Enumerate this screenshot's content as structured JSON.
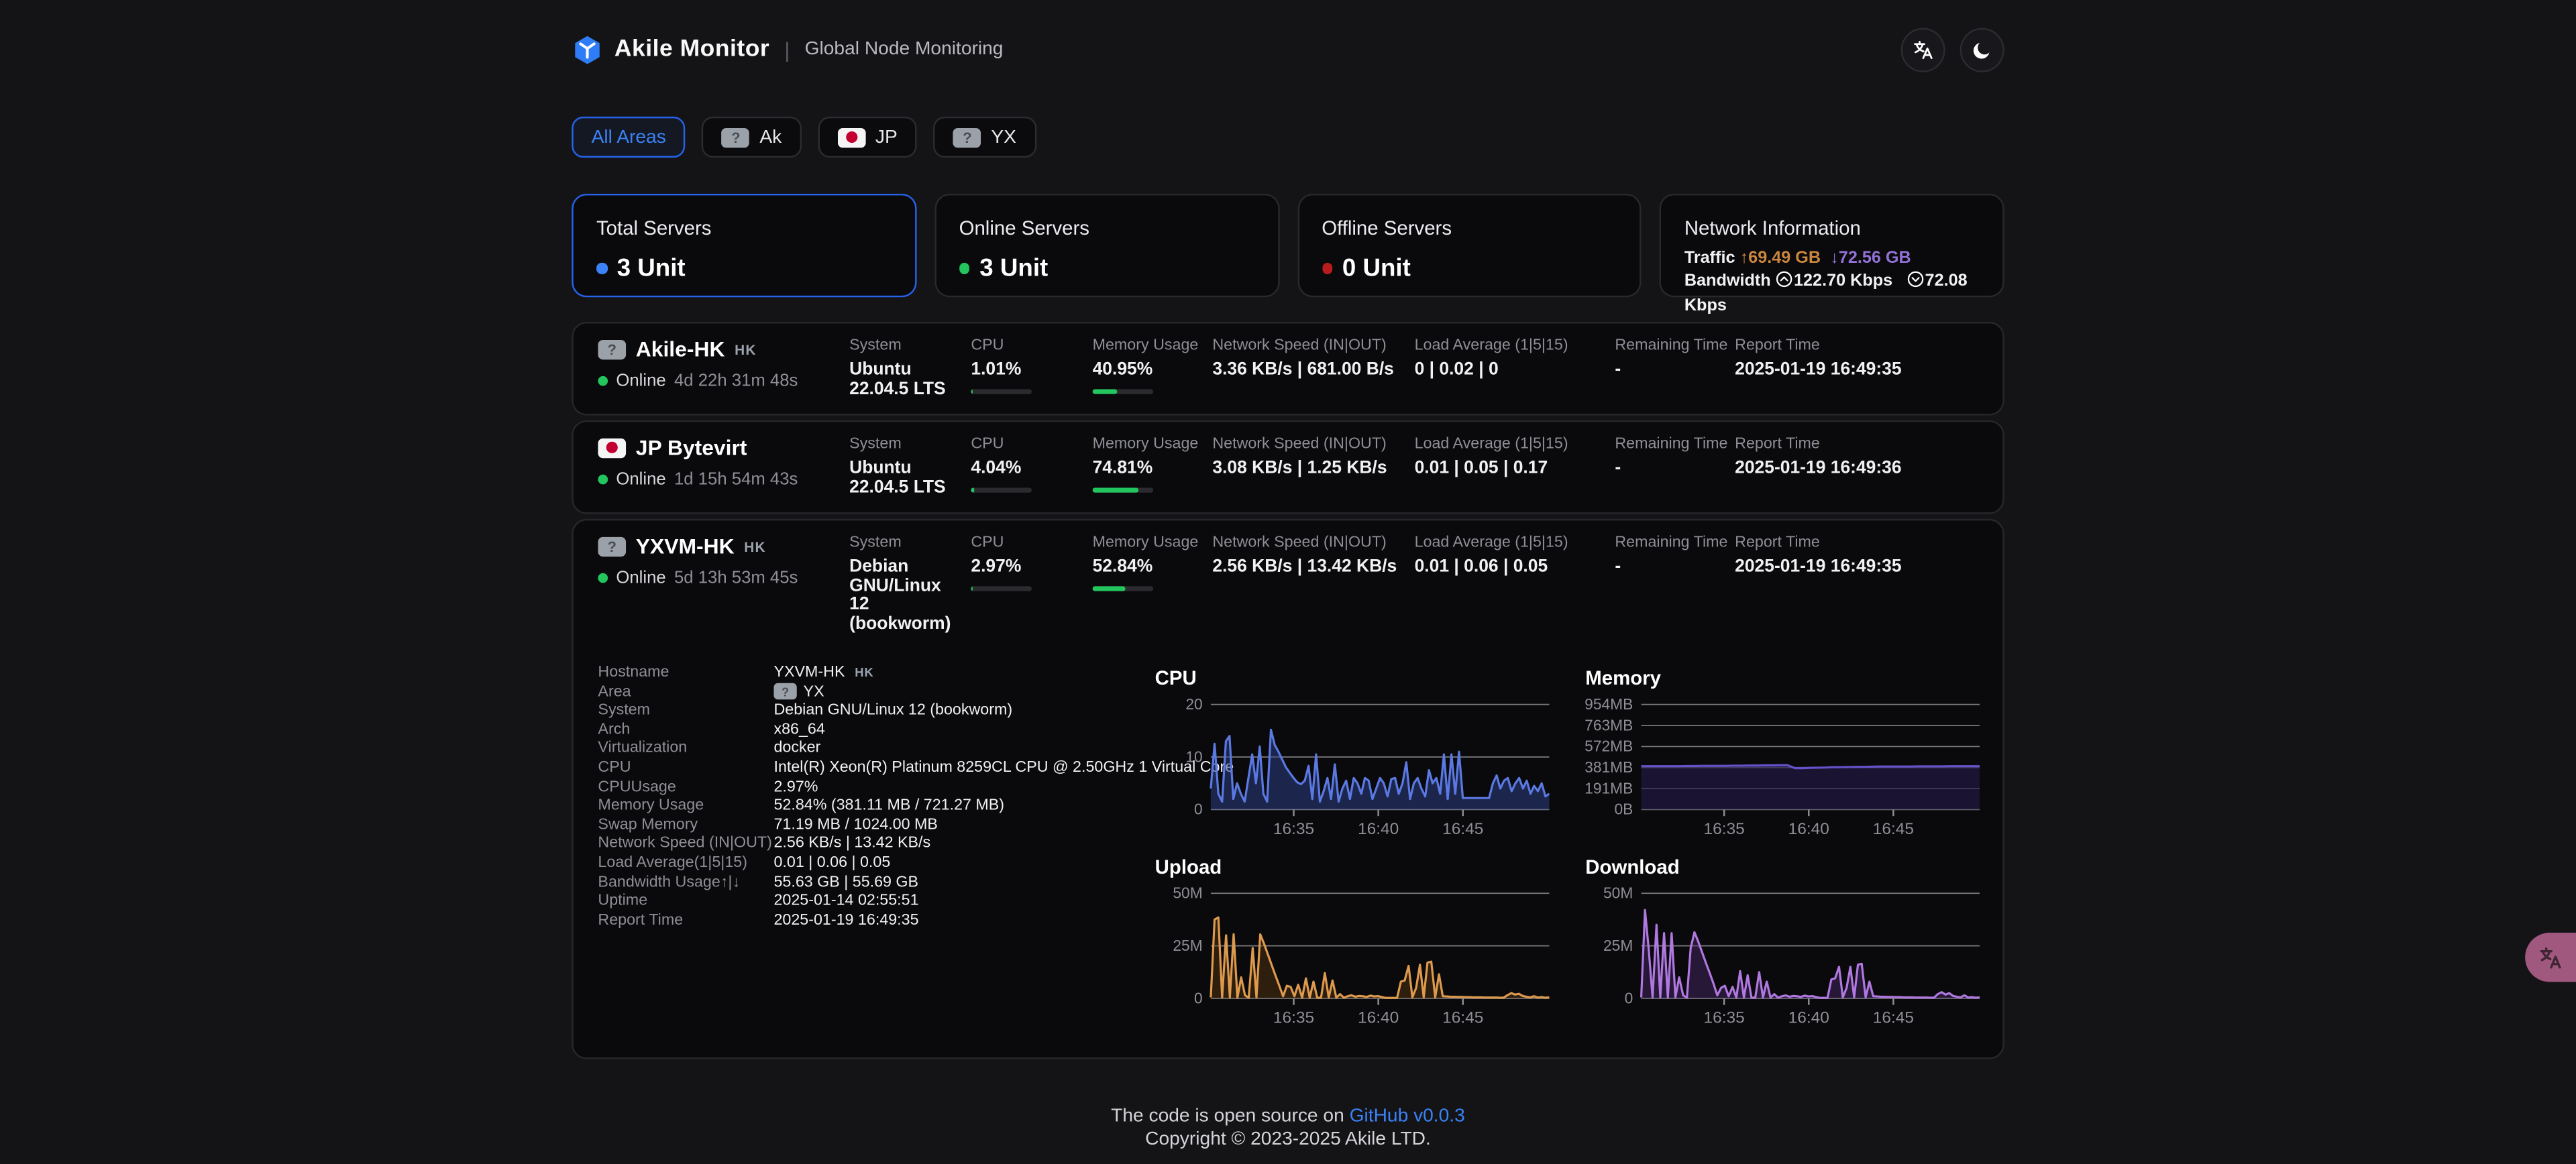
{
  "header": {
    "brand": "Akile Monitor",
    "separator": "|",
    "subtitle": "Global Node Monitoring",
    "icons": [
      "translate-icon",
      "moon-icon"
    ]
  },
  "area_tabs": [
    {
      "label": "All Areas",
      "flag": null,
      "active": true
    },
    {
      "label": "Ak",
      "flag": "unknown",
      "active": false
    },
    {
      "label": "JP",
      "flag": "jp",
      "active": false
    },
    {
      "label": "YX",
      "flag": "unknown",
      "active": false
    }
  ],
  "stats": [
    {
      "title": "Total Servers",
      "value": "3 Unit",
      "dot_color": "#3b82f6",
      "selected": true
    },
    {
      "title": "Online Servers",
      "value": "3 Unit",
      "dot_color": "#22c55e",
      "selected": false
    },
    {
      "title": "Offline Servers",
      "value": "0 Unit",
      "dot_color": "#b91c1c",
      "selected": false
    }
  ],
  "network_card": {
    "title": "Network Information",
    "traffic_label": "Traffic",
    "traffic_up": "↑69.49 GB",
    "traffic_down": "↓72.56 GB",
    "bandwidth_label": "Bandwidth",
    "bandwidth_up": "122.70 Kbps",
    "bandwidth_down": "72.08 Kbps"
  },
  "row_labels": {
    "system": "System",
    "cpu": "CPU",
    "memory": "Memory Usage",
    "network": "Network Speed (IN|OUT)",
    "load": "Load Average (1|5|15)",
    "remaining": "Remaining Time",
    "report": "Report Time"
  },
  "servers": [
    {
      "name": "Akile-HK",
      "region": "HK",
      "flag": "unknown",
      "status": "Online",
      "uptime": "4d 22h 31m 48s",
      "system": "Ubuntu 22.04.5 LTS",
      "cpu": "1.01%",
      "cpu_pct": 2.5,
      "memory": "40.95%",
      "memory_pct": 40.95,
      "network": "3.36 KB/s | 681.00 B/s",
      "load": "0 | 0.02 | 0",
      "remaining": "-",
      "report": "2025-01-19 16:49:35"
    },
    {
      "name": "JP Bytevirt",
      "region": "",
      "flag": "jp",
      "status": "Online",
      "uptime": "1d 15h 54m 43s",
      "system": "Ubuntu 22.04.5 LTS",
      "cpu": "4.04%",
      "cpu_pct": 5,
      "memory": "74.81%",
      "memory_pct": 74.81,
      "network": "3.08 KB/s | 1.25 KB/s",
      "load": "0.01 | 0.05 | 0.17",
      "remaining": "-",
      "report": "2025-01-19 16:49:36"
    },
    {
      "name": "YXVM-HK",
      "region": "HK",
      "flag": "unknown",
      "status": "Online",
      "uptime": "5d 13h 53m 45s",
      "system": "Debian GNU/Linux 12 (bookworm)",
      "cpu": "2.97%",
      "cpu_pct": 4,
      "memory": "52.84%",
      "memory_pct": 52.84,
      "network": "2.56 KB/s | 13.42 KB/s",
      "load": "0.01 | 0.06 | 0.05",
      "remaining": "-",
      "report": "2025-01-19 16:49:35"
    }
  ],
  "details": {
    "rows": [
      {
        "label": "Hostname",
        "value": "YXVM-HK",
        "suffix": "HK"
      },
      {
        "label": "Area",
        "value": "YX",
        "flag": "unknown"
      },
      {
        "label": "System",
        "value": "Debian GNU/Linux 12 (bookworm)"
      },
      {
        "label": "Arch",
        "value": "x86_64"
      },
      {
        "label": "Virtualization",
        "value": "docker"
      },
      {
        "label": "CPU",
        "value": "Intel(R) Xeon(R) Platinum 8259CL CPU @ 2.50GHz 1 Virtual Core"
      },
      {
        "label": "CPUUsage",
        "value": "2.97%"
      },
      {
        "label": "Memory Usage",
        "value": "52.84% (381.11 MB / 721.27 MB)"
      },
      {
        "label": "Swap Memory",
        "value": "71.19 MB / 1024.00 MB"
      },
      {
        "label": "Network Speed  (IN|OUT)",
        "value": "2.56 KB/s | 13.42 KB/s"
      },
      {
        "label": "Load Average(1|5|15)",
        "value": "0.01 | 0.06 | 0.05"
      },
      {
        "label": "Bandwidth Usage↑|↓",
        "value": "55.63 GB | 55.69 GB"
      },
      {
        "label": "Uptime",
        "value": "2025-01-14 02:55:51"
      },
      {
        "label": "Report Time",
        "value": "2025-01-19 16:49:35"
      }
    ]
  },
  "chart_data": [
    {
      "type": "area",
      "title": "CPU",
      "ylabel": "CPU %",
      "y_max": 20,
      "grid": true,
      "legend": "none",
      "color": "#5b79e3",
      "fill": "rgba(45,65,140,0.5)",
      "y_ticks": [
        {
          "label": "20",
          "v": 20
        },
        {
          "label": "10",
          "v": 10
        },
        {
          "label": "0",
          "v": 0
        }
      ],
      "x_ticks": [
        {
          "label": "16:35",
          "pos": 0.245
        },
        {
          "label": "16:40",
          "pos": 0.495
        },
        {
          "label": "16:45",
          "pos": 0.745
        }
      ],
      "values": [
        4,
        12.5,
        3,
        1.5,
        13,
        14,
        2,
        5,
        3,
        1.5,
        6,
        10.5,
        5,
        12,
        3,
        1.5,
        15.2,
        12.3,
        11,
        9.5,
        8,
        7,
        6,
        5.2,
        4.8,
        5.5,
        8.3,
        2,
        10.5,
        1.5,
        3.5,
        6,
        2,
        8.6,
        1.5,
        4,
        5.5,
        2,
        6,
        5,
        3,
        6,
        5.5,
        2,
        4,
        6,
        5,
        2.5,
        5.8,
        6,
        3,
        5,
        9,
        2,
        5,
        6,
        4,
        2.5,
        7.5,
        5,
        6,
        3,
        10.5,
        2,
        10.5,
        3,
        11,
        2.2,
        2.2,
        2.2,
        2.2,
        2.2,
        2.2,
        2.2,
        2.2,
        5,
        6.5,
        4,
        5.5,
        6,
        3.5,
        5,
        6,
        4,
        5.5,
        3,
        4.5,
        3.5,
        5,
        2.5,
        3
      ]
    },
    {
      "type": "area",
      "title": "Memory",
      "ylabel": "Memory MB",
      "y_max": 954,
      "grid": true,
      "legend": "none",
      "color": "#6553cb",
      "fill": "rgba(35,25,70,0.65)",
      "y_ticks": [
        {
          "label": "954MB",
          "v": 954
        },
        {
          "label": "763MB",
          "v": 763
        },
        {
          "label": "572MB",
          "v": 572
        },
        {
          "label": "381MB",
          "v": 381
        },
        {
          "label": "191MB",
          "v": 191
        },
        {
          "label": "0B",
          "v": 0
        }
      ],
      "x_ticks": [
        {
          "label": "16:35",
          "pos": 0.245
        },
        {
          "label": "16:40",
          "pos": 0.495
        },
        {
          "label": "16:45",
          "pos": 0.745
        }
      ],
      "values": [
        393,
        393,
        393,
        394,
        394,
        394,
        395,
        395,
        396,
        396,
        397,
        397,
        398,
        398,
        399,
        400,
        401,
        401,
        402,
        402,
        375,
        376,
        378,
        380,
        382,
        384,
        385,
        386,
        387,
        388,
        389,
        390,
        390,
        391,
        391,
        391,
        392,
        392,
        392,
        392,
        393,
        393,
        393,
        393,
        393
      ]
    },
    {
      "type": "area",
      "title": "Upload",
      "ylabel": "Upload (bit/s)",
      "y_max": 50,
      "grid": true,
      "legend": "none",
      "color": "#dd9a4e",
      "fill": "rgba(100,60,18,0.4)",
      "y_ticks": [
        {
          "label": "50M",
          "v": 50
        },
        {
          "label": "25M",
          "v": 25
        },
        {
          "label": "0",
          "v": 0
        }
      ],
      "x_ticks": [
        {
          "label": "16:35",
          "pos": 0.245
        },
        {
          "label": "16:40",
          "pos": 0.495
        },
        {
          "label": "16:45",
          "pos": 0.745
        }
      ],
      "values": [
        0.5,
        37.5,
        38.5,
        0.5,
        30,
        0.5,
        30.5,
        0.3,
        10,
        1.5,
        0.3,
        24,
        0.5,
        30.5,
        26,
        21,
        16,
        11,
        6,
        1,
        6,
        5.5,
        1,
        6.5,
        0.3,
        9.5,
        0.3,
        8,
        0.3,
        0.3,
        12,
        0.4,
        8.5,
        0.3,
        2,
        0.3,
        1,
        1.5,
        0.8,
        1.2,
        1,
        0.7,
        1.3,
        0.9,
        1.1,
        0.6,
        0.2,
        0.2,
        0.2,
        0.2,
        8,
        8.5,
        15.5,
        0.5,
        5,
        16,
        0.5,
        17,
        17.5,
        0.5,
        11.5,
        1,
        0.9,
        0.8,
        0.8,
        0.7,
        0.7,
        0.6,
        0.6,
        0.5,
        0.5,
        0.5,
        0.4,
        0.4,
        0.4,
        0.4,
        0.3,
        0.3,
        1.5,
        2.5,
        1.8,
        2.2,
        1.2,
        0.8,
        0.5,
        1,
        0.4,
        0.6,
        0.3,
        0.5
      ]
    },
    {
      "type": "area",
      "title": "Download",
      "ylabel": "Download (bit/s)",
      "y_max": 50,
      "grid": true,
      "legend": "none",
      "color": "#b078e0",
      "fill": "rgba(75,42,110,0.45)",
      "y_ticks": [
        {
          "label": "50M",
          "v": 50
        },
        {
          "label": "25M",
          "v": 25
        },
        {
          "label": "0",
          "v": 0
        }
      ],
      "x_ticks": [
        {
          "label": "16:35",
          "pos": 0.245
        },
        {
          "label": "16:40",
          "pos": 0.495
        },
        {
          "label": "16:45",
          "pos": 0.745
        }
      ],
      "values": [
        0.5,
        42,
        23,
        0.5,
        35,
        0.5,
        31,
        0.4,
        31,
        0.5,
        10,
        1.5,
        0.3,
        24,
        31.5,
        27,
        22,
        17,
        12,
        7,
        1.5,
        5,
        6,
        1,
        5.5,
        0.3,
        13,
        0.3,
        11,
        0.3,
        0.3,
        12.5,
        0.4,
        8,
        0.3,
        2,
        0.3,
        1,
        1.4,
        0.8,
        1.2,
        1,
        0.7,
        1.3,
        0.9,
        1.1,
        0.6,
        0.2,
        0.2,
        0.2,
        9,
        9.5,
        15,
        0.5,
        5,
        15,
        0.5,
        16,
        16.5,
        0.5,
        8,
        1,
        0.9,
        0.8,
        0.8,
        0.7,
        0.7,
        0.6,
        0.6,
        0.5,
        0.5,
        0.5,
        0.4,
        0.4,
        0.4,
        0.4,
        0.3,
        0.3,
        2,
        3,
        1.8,
        2.5,
        1.2,
        0.8,
        0.5,
        1.5,
        0.4,
        0.6,
        0.3,
        0.5
      ]
    }
  ],
  "footer": {
    "text": "The code is open source on ",
    "link": "GitHub v0.0.3",
    "copyright": "Copyright © 2023-2025 Akile LTD."
  }
}
